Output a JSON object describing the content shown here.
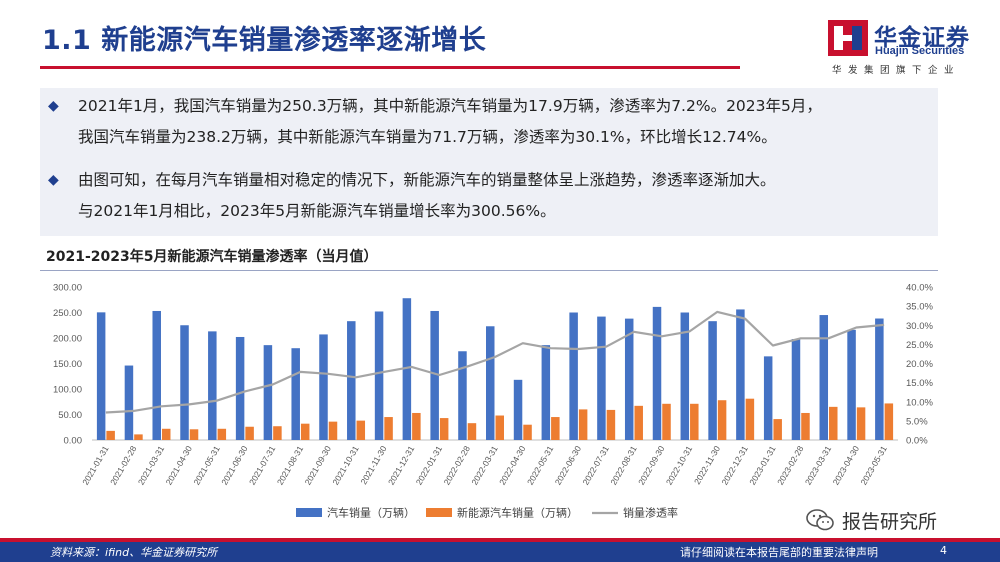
{
  "header": {
    "title": "1.1 新能源汽车销量渗透率逐渐增长",
    "logo_cn": "华金证券",
    "logo_en": "Huajin Securities",
    "logo_sub": "华发集团旗下企业"
  },
  "summary": {
    "p1_line1": "2021年1月，我国汽车销量为250.3万辆，其中新能源汽车销量为17.9万辆，渗透率为7.2%。2023年5月，",
    "p1_line2": "我国汽车销量为238.2万辆，其中新能源汽车销量为71.7万辆，渗透率为30.1%，环比增长12.74%。",
    "p2_line1": "由图可知，在每月汽车销量相对稳定的情况下，新能源汽车的销量整体呈上涨趋势，渗透率逐渐加大。",
    "p2_line2": "与2021年1月相比，2023年5月新能源汽车销量增长率为300.56%。",
    "bullet": "◆"
  },
  "chart_title": "2021-2023年5月新能源汽车销量渗透率（当月值）",
  "watermark": "报告研究所",
  "footer": {
    "source": "资料来源：ifind、华金证券研究所",
    "disclaimer": "请仔细阅读在本报告尾部的重要法律声明",
    "page": "4"
  },
  "colors": {
    "bar_total": "#4472c4",
    "bar_nev": "#ed7d31",
    "line_rate": "#a5a5a5",
    "brand_blue": "#1f3f8f",
    "brand_red": "#c8102e"
  },
  "chart_data": {
    "type": "bar",
    "title": "2021-2023年5月新能源汽车销量渗透率（当月值）",
    "categories": [
      "2021-01-31",
      "2021-02-28",
      "2021-03-31",
      "2021-04-30",
      "2021-05-31",
      "2021-06-30",
      "2021-07-31",
      "2021-08-31",
      "2021-09-30",
      "2021-10-31",
      "2021-11-30",
      "2021-12-31",
      "2022-01-31",
      "2022-02-28",
      "2022-03-31",
      "2022-04-30",
      "2022-05-31",
      "2022-06-30",
      "2022-07-31",
      "2022-08-31",
      "2022-09-30",
      "2022-10-31",
      "2022-11-30",
      "2022-12-31",
      "2023-01-31",
      "2023-02-28",
      "2023-03-31",
      "2023-04-30",
      "2023-05-31"
    ],
    "series": [
      {
        "name": "汽车销量（万辆）",
        "axis": "left",
        "type": "bar",
        "values": [
          250.3,
          146,
          253,
          225,
          213,
          202,
          186,
          180,
          207,
          233,
          252,
          278,
          253,
          174,
          223,
          118,
          186,
          250,
          242,
          238,
          261,
          250,
          233,
          256,
          164,
          198,
          245,
          216,
          238.2
        ]
      },
      {
        "name": "新能源汽车销量（万辆）",
        "axis": "left",
        "type": "bar",
        "values": [
          17.9,
          11,
          22,
          21,
          22,
          26,
          27,
          32,
          36,
          38,
          45,
          53,
          43,
          33,
          48,
          30,
          45,
          60,
          59,
          67,
          71,
          71,
          78,
          81,
          41,
          53,
          65,
          64,
          71.7
        ]
      },
      {
        "name": "销量渗透率",
        "axis": "right",
        "type": "line",
        "values": [
          7.2,
          7.6,
          8.8,
          9.3,
          10.3,
          12.7,
          14.5,
          17.8,
          17.3,
          16.4,
          17.8,
          19.1,
          17.0,
          19.2,
          21.7,
          25.3,
          24.0,
          23.8,
          24.4,
          28.3,
          27.1,
          28.4,
          33.5,
          31.7,
          24.7,
          26.6,
          26.6,
          29.4,
          30.1
        ]
      }
    ],
    "left_ticks": [
      "0.00",
      "50.00",
      "100.00",
      "150.00",
      "200.00",
      "250.00",
      "300.00"
    ],
    "right_ticks": [
      "0.0%",
      "5.0%",
      "10.0%",
      "15.0%",
      "20.0%",
      "25.0%",
      "30.0%",
      "35.0%",
      "40.0%"
    ],
    "ylim_left": [
      0,
      300
    ],
    "ylim_right": [
      0,
      40
    ],
    "legend_position": "bottom",
    "grid": false
  }
}
